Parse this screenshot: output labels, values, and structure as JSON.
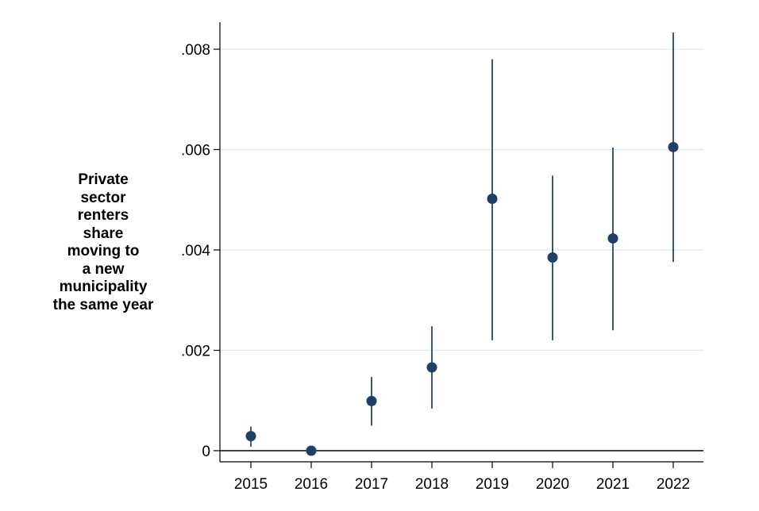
{
  "chart_data": {
    "type": "scatter",
    "title": "",
    "xlabel": "",
    "ylabel_lines": [
      "Private",
      "sector",
      "renters",
      "share",
      "moving to",
      "a new",
      "municipality",
      "the same year"
    ],
    "x_ticks": [
      "2015",
      "2016",
      "2017",
      "2018",
      "2019",
      "2020",
      "2021",
      "2022"
    ],
    "y_ticks": [
      {
        "value": 0,
        "label": "0"
      },
      {
        "value": 0.002,
        "label": ".002"
      },
      {
        "value": 0.004,
        "label": ".004"
      },
      {
        "value": 0.006,
        "label": ".006"
      },
      {
        "value": 0.008,
        "label": ".008"
      }
    ],
    "ylim": [
      -0.0002,
      0.0085
    ],
    "grid": true,
    "colors": {
      "marker": "#1f3f66",
      "error_bar": "#3b5774",
      "grid": "#dde9ee",
      "axis": "#000000"
    },
    "points": [
      {
        "x": "2015",
        "y": 0.00029,
        "ci_low": 8e-05,
        "ci_high": 0.00048
      },
      {
        "x": "2016",
        "y": 0.0,
        "ci_low": 0.0,
        "ci_high": 0.0
      },
      {
        "x": "2017",
        "y": 0.00099,
        "ci_low": 0.0005,
        "ci_high": 0.00147
      },
      {
        "x": "2018",
        "y": 0.00166,
        "ci_low": 0.00084,
        "ci_high": 0.00248
      },
      {
        "x": "2019",
        "y": 0.00502,
        "ci_low": 0.0022,
        "ci_high": 0.0078
      },
      {
        "x": "2020",
        "y": 0.00385,
        "ci_low": 0.0022,
        "ci_high": 0.00548
      },
      {
        "x": "2021",
        "y": 0.00423,
        "ci_low": 0.0024,
        "ci_high": 0.00604
      },
      {
        "x": "2022",
        "y": 0.00605,
        "ci_low": 0.00376,
        "ci_high": 0.00833
      }
    ]
  }
}
